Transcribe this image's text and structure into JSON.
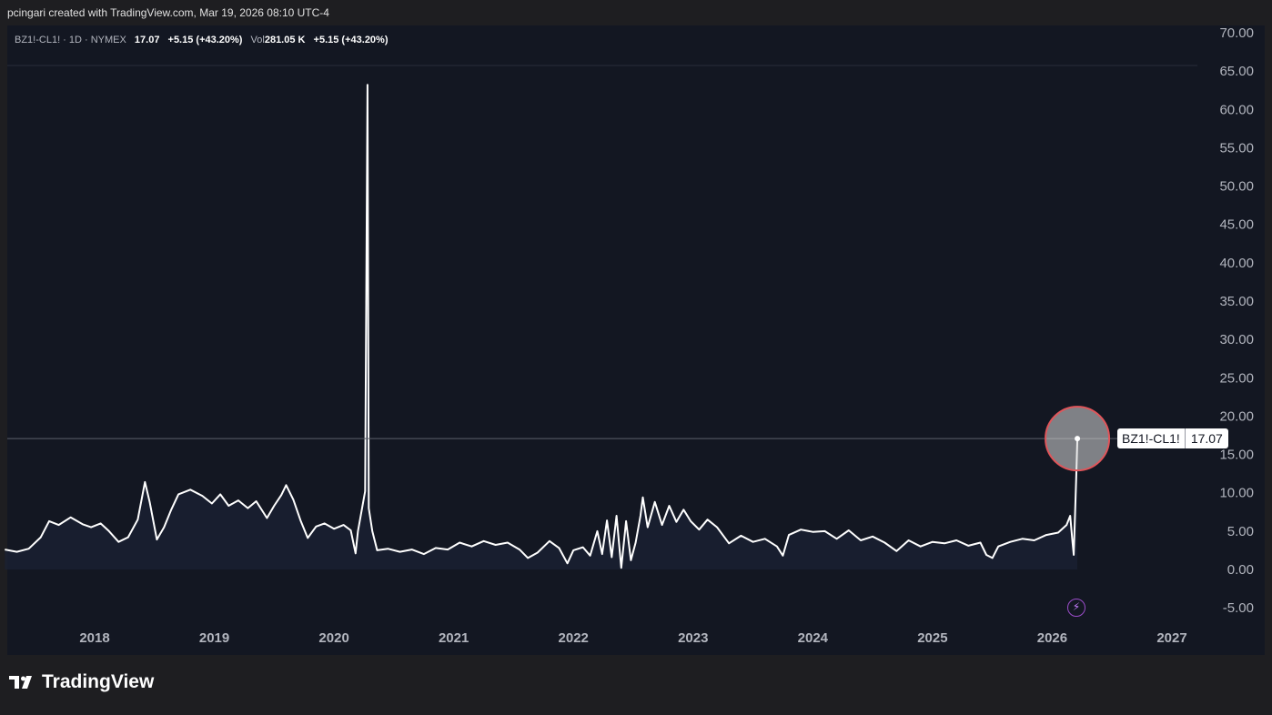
{
  "credit": "pcingari created with TradingView.com, Mar 19, 2026 08:10 UTC-4",
  "legend": {
    "symbol": "BZ1!-CL1! · 1D · NYMEX",
    "price": "17.07",
    "change": "+5.15 (+43.20%)",
    "vol_label": "Vol",
    "vol_value": "281.05 K",
    "vol_change": "+5.15 (+43.20%)"
  },
  "price_label": {
    "name": "BZ1!-CL1!",
    "value": "17.07"
  },
  "logo_text": "TradingView",
  "icons": {
    "logo": "tradingview-logo-icon",
    "flash": "lightning-icon"
  },
  "colors": {
    "background": "#131722",
    "frame": "#1e1e21",
    "line": "#ffffff",
    "highlight_circle": "#e0555a",
    "axis_text": "#b2b5be"
  },
  "chart_data": {
    "type": "line",
    "title": "",
    "xlabel": "",
    "ylabel": "",
    "x_ticks": [
      "2018",
      "2019",
      "2020",
      "2021",
      "2022",
      "2023",
      "2024",
      "2025",
      "2026",
      "2027"
    ],
    "y_ticks": [
      "-5.00",
      "0.00",
      "5.00",
      "10.00",
      "15.00",
      "20.00",
      "25.00",
      "30.00",
      "35.00",
      "40.00",
      "45.00",
      "50.00",
      "55.00",
      "60.00",
      "65.00",
      "70.00"
    ],
    "xlim": [
      2017.2,
      2027.3
    ],
    "ylim": [
      -7.5,
      70
    ],
    "grid": false,
    "last_value": 17.07,
    "series": [
      {
        "values": [
          [
            2017.25,
            2.6
          ],
          [
            2017.35,
            2.3
          ],
          [
            2017.45,
            2.7
          ],
          [
            2017.55,
            4.2
          ],
          [
            2017.62,
            6.3
          ],
          [
            2017.7,
            5.8
          ],
          [
            2017.8,
            6.8
          ],
          [
            2017.9,
            5.9
          ],
          [
            2017.97,
            5.5
          ],
          [
            2018.05,
            6.0
          ],
          [
            2018.12,
            5.0
          ],
          [
            2018.2,
            3.6
          ],
          [
            2018.28,
            4.2
          ],
          [
            2018.36,
            6.5
          ],
          [
            2018.42,
            11.4
          ],
          [
            2018.46,
            8.8
          ],
          [
            2018.52,
            3.9
          ],
          [
            2018.58,
            5.5
          ],
          [
            2018.64,
            7.8
          ],
          [
            2018.7,
            9.8
          ],
          [
            2018.8,
            10.4
          ],
          [
            2018.9,
            9.6
          ],
          [
            2018.98,
            8.6
          ],
          [
            2019.05,
            9.8
          ],
          [
            2019.12,
            8.3
          ],
          [
            2019.2,
            9.0
          ],
          [
            2019.28,
            8.0
          ],
          [
            2019.35,
            8.9
          ],
          [
            2019.44,
            6.7
          ],
          [
            2019.5,
            8.3
          ],
          [
            2019.56,
            9.7
          ],
          [
            2019.6,
            11.0
          ],
          [
            2019.66,
            9.1
          ],
          [
            2019.72,
            6.4
          ],
          [
            2019.78,
            4.1
          ],
          [
            2019.85,
            5.6
          ],
          [
            2019.92,
            6.0
          ],
          [
            2020.0,
            5.3
          ],
          [
            2020.08,
            5.8
          ],
          [
            2020.14,
            5.1
          ],
          [
            2020.18,
            2.1
          ],
          [
            2020.2,
            5.0
          ],
          [
            2020.24,
            8.5
          ],
          [
            2020.26,
            10.2
          ],
          [
            2020.28,
            63.2
          ],
          [
            2020.29,
            8.0
          ],
          [
            2020.32,
            5.0
          ],
          [
            2020.36,
            2.5
          ],
          [
            2020.45,
            2.7
          ],
          [
            2020.55,
            2.3
          ],
          [
            2020.65,
            2.6
          ],
          [
            2020.75,
            2.0
          ],
          [
            2020.85,
            2.8
          ],
          [
            2020.95,
            2.6
          ],
          [
            2021.05,
            3.5
          ],
          [
            2021.15,
            3.0
          ],
          [
            2021.25,
            3.7
          ],
          [
            2021.35,
            3.2
          ],
          [
            2021.45,
            3.5
          ],
          [
            2021.55,
            2.6
          ],
          [
            2021.62,
            1.5
          ],
          [
            2021.7,
            2.2
          ],
          [
            2021.8,
            3.7
          ],
          [
            2021.88,
            2.8
          ],
          [
            2021.95,
            0.8
          ],
          [
            2022.0,
            2.5
          ],
          [
            2022.08,
            2.9
          ],
          [
            2022.14,
            1.8
          ],
          [
            2022.2,
            5.0
          ],
          [
            2022.24,
            2.0
          ],
          [
            2022.28,
            6.4
          ],
          [
            2022.32,
            1.6
          ],
          [
            2022.36,
            7.0
          ],
          [
            2022.4,
            0.2
          ],
          [
            2022.44,
            6.3
          ],
          [
            2022.48,
            1.2
          ],
          [
            2022.52,
            3.5
          ],
          [
            2022.56,
            7.0
          ],
          [
            2022.58,
            9.4
          ],
          [
            2022.62,
            5.5
          ],
          [
            2022.68,
            8.8
          ],
          [
            2022.74,
            5.8
          ],
          [
            2022.8,
            8.3
          ],
          [
            2022.86,
            6.2
          ],
          [
            2022.92,
            7.8
          ],
          [
            2022.98,
            6.3
          ],
          [
            2023.05,
            5.2
          ],
          [
            2023.12,
            6.5
          ],
          [
            2023.2,
            5.5
          ],
          [
            2023.3,
            3.4
          ],
          [
            2023.4,
            4.4
          ],
          [
            2023.5,
            3.6
          ],
          [
            2023.6,
            4.0
          ],
          [
            2023.7,
            3.0
          ],
          [
            2023.75,
            1.8
          ],
          [
            2023.8,
            4.5
          ],
          [
            2023.9,
            5.2
          ],
          [
            2024.0,
            4.9
          ],
          [
            2024.1,
            5.0
          ],
          [
            2024.2,
            4.0
          ],
          [
            2024.3,
            5.1
          ],
          [
            2024.4,
            3.8
          ],
          [
            2024.5,
            4.3
          ],
          [
            2024.6,
            3.5
          ],
          [
            2024.7,
            2.4
          ],
          [
            2024.8,
            3.8
          ],
          [
            2024.9,
            3.0
          ],
          [
            2025.0,
            3.6
          ],
          [
            2025.1,
            3.4
          ],
          [
            2025.2,
            3.8
          ],
          [
            2025.3,
            3.1
          ],
          [
            2025.4,
            3.5
          ],
          [
            2025.45,
            1.9
          ],
          [
            2025.5,
            1.5
          ],
          [
            2025.55,
            3.0
          ],
          [
            2025.65,
            3.6
          ],
          [
            2025.75,
            4.0
          ],
          [
            2025.85,
            3.8
          ],
          [
            2025.95,
            4.5
          ],
          [
            2026.05,
            4.8
          ],
          [
            2026.12,
            5.8
          ],
          [
            2026.15,
            7.0
          ],
          [
            2026.17,
            3.5
          ],
          [
            2026.18,
            1.9
          ],
          [
            2026.2,
            11.9
          ],
          [
            2026.21,
            17.07
          ]
        ]
      }
    ]
  }
}
